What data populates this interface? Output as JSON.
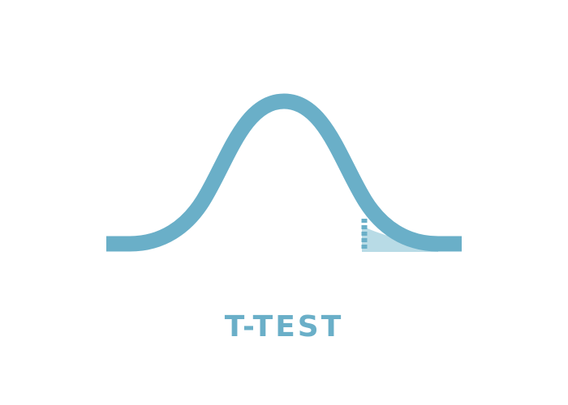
{
  "title": "T-TEST",
  "colors": {
    "curve": "#6aafc8",
    "tail_fill": "#b8dbe6",
    "background": "#ffffff"
  }
}
